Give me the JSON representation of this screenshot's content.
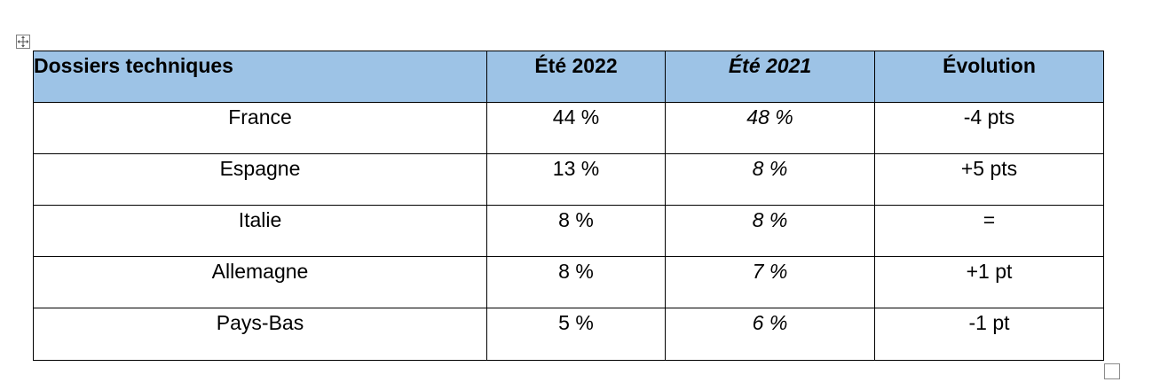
{
  "table": {
    "headers": [
      "Dossiers techniques",
      "Été 2022",
      "Été 2021",
      "Évolution"
    ],
    "rows": [
      {
        "pays": "France",
        "ete2022": "44 %",
        "ete2021": "48 %",
        "evolution": "-4 pts"
      },
      {
        "pays": "Espagne",
        "ete2022": "13 %",
        "ete2021": "8 %",
        "evolution": "+5 pts"
      },
      {
        "pays": "Italie",
        "ete2022": "8 %",
        "ete2021": "8 %",
        "evolution": "="
      },
      {
        "pays": "Allemagne",
        "ete2022": "8 %",
        "ete2021": "7 %",
        "evolution": "+1 pt"
      },
      {
        "pays": "Pays-Bas",
        "ete2022": "5 %",
        "ete2021": "6 %",
        "evolution": "-1 pt"
      }
    ]
  },
  "colors": {
    "header_background": "#9dc3e6",
    "border": "#000000"
  },
  "icons": {
    "table_move_handle": "move-arrows-icon",
    "table_resize_handle": "resize-square-icon"
  }
}
